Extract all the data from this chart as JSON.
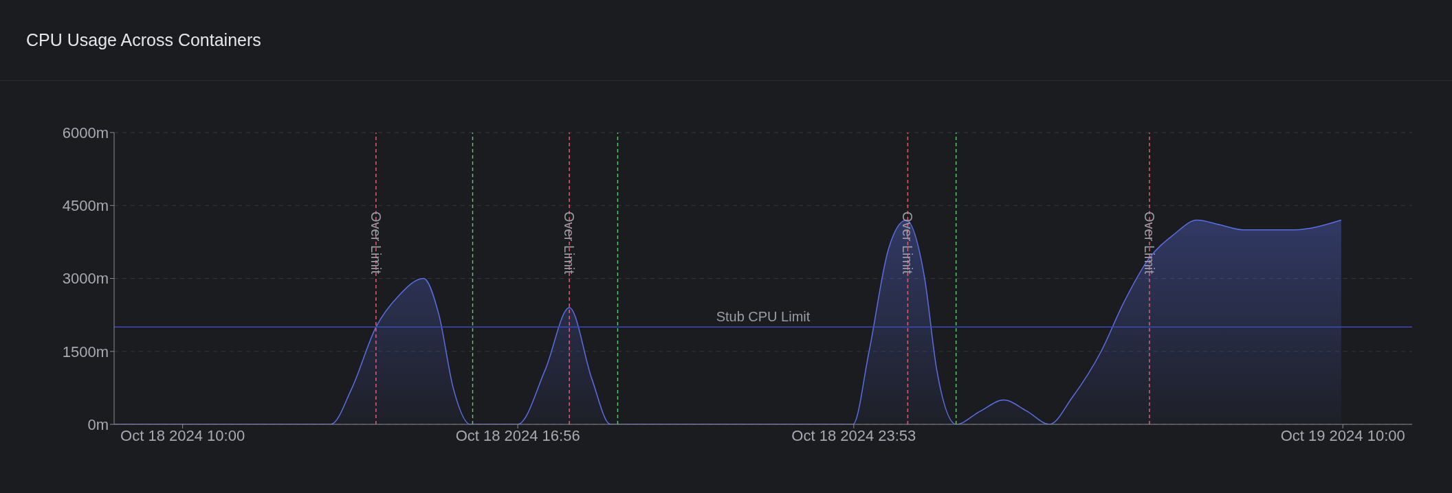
{
  "chart_data": {
    "type": "area",
    "title": "CPU Usage Across Containers",
    "x": [
      "2024-10-18T08:35",
      "2024-10-18T13:04",
      "2024-10-18T13:30",
      "2024-10-18T14:00",
      "2024-10-18T14:28",
      "2024-10-18T14:59",
      "2024-10-18T15:18",
      "2024-10-18T15:36",
      "2024-10-18T15:57",
      "2024-10-18T16:56",
      "2024-10-18T17:30",
      "2024-10-18T18:00",
      "2024-10-18T18:28",
      "2024-10-18T18:51",
      "2024-10-18T23:52",
      "2024-10-19T00:12",
      "2024-10-19T00:36",
      "2024-10-19T00:58",
      "2024-10-19T01:21",
      "2024-10-19T01:36",
      "2024-10-19T02:00",
      "2024-10-19T02:30",
      "2024-10-19T02:59",
      "2024-10-19T03:28",
      "2024-10-19T03:56",
      "2024-10-19T04:24",
      "2024-10-19T05:00",
      "2024-10-19T05:28",
      "2024-10-19T05:59",
      "2024-10-19T06:30",
      "2024-10-19T06:59",
      "2024-10-19T07:28",
      "2024-10-19T07:56",
      "2024-10-19T08:59",
      "2024-10-19T09:58"
    ],
    "series": [
      {
        "color": "#5b6ee1",
        "values": [
          0,
          0,
          740,
          2000,
          2640,
          3000,
          2260,
          740,
          0,
          0,
          1120,
          2400,
          930,
          0,
          0,
          1500,
          3600,
          4200,
          3000,
          1120,
          0,
          270,
          500,
          270,
          0,
          550,
          1500,
          2500,
          3400,
          3900,
          4200,
          4100,
          4000,
          4000,
          4200
        ]
      }
    ],
    "xlim": [
      "2024-10-18T08:35",
      "2024-10-19T11:26"
    ],
    "xticks": [
      {
        "value": "2024-10-18T10:00",
        "label": "Oct 18 2024 10:00"
      },
      {
        "value": "2024-10-18T16:56",
        "label": "Oct 18 2024 16:56"
      },
      {
        "value": "2024-10-18T23:53",
        "label": "Oct 18 2024 23:53"
      },
      {
        "value": "2024-10-19T10:00",
        "label": "Oct 19 2024 10:00"
      }
    ],
    "ylim": [
      0,
      6000
    ],
    "yticks": [
      {
        "value": 0,
        "label": "0m"
      },
      {
        "value": 1500,
        "label": "1500m"
      },
      {
        "value": 3000,
        "label": "3000m"
      },
      {
        "value": 4500,
        "label": "4500m"
      },
      {
        "value": 6000,
        "label": "6000m"
      }
    ],
    "grid": "y",
    "marker": "none",
    "line_style": "solid",
    "ref_lines": [
      {
        "axis": "y",
        "value": 2000,
        "label": "Stub CPU Limit",
        "color": "#3a4bb8",
        "line_style": "solid"
      },
      {
        "axis": "x",
        "value": "2024-10-18T14:00",
        "label": "Over Limit",
        "color": "#e0606e",
        "line_style": "dashed"
      },
      {
        "axis": "x",
        "value": "2024-10-18T16:00",
        "color": "#5cc46c",
        "line_style": "dashed"
      },
      {
        "axis": "x",
        "value": "2024-10-18T18:00",
        "label": "Over Limit",
        "color": "#e0606e",
        "line_style": "dashed"
      },
      {
        "axis": "x",
        "value": "2024-10-18T19:00",
        "color": "#5cc46c",
        "line_style": "dashed"
      },
      {
        "axis": "x",
        "value": "2024-10-19T01:00",
        "label": "Over Limit",
        "color": "#e0606e",
        "line_style": "dashed"
      },
      {
        "axis": "x",
        "value": "2024-10-19T02:00",
        "color": "#5cc46c",
        "line_style": "dashed"
      },
      {
        "axis": "x",
        "value": "2024-10-19T06:00",
        "label": "Over Limit",
        "color": "#e0606e",
        "line_style": "dashed"
      }
    ]
  }
}
